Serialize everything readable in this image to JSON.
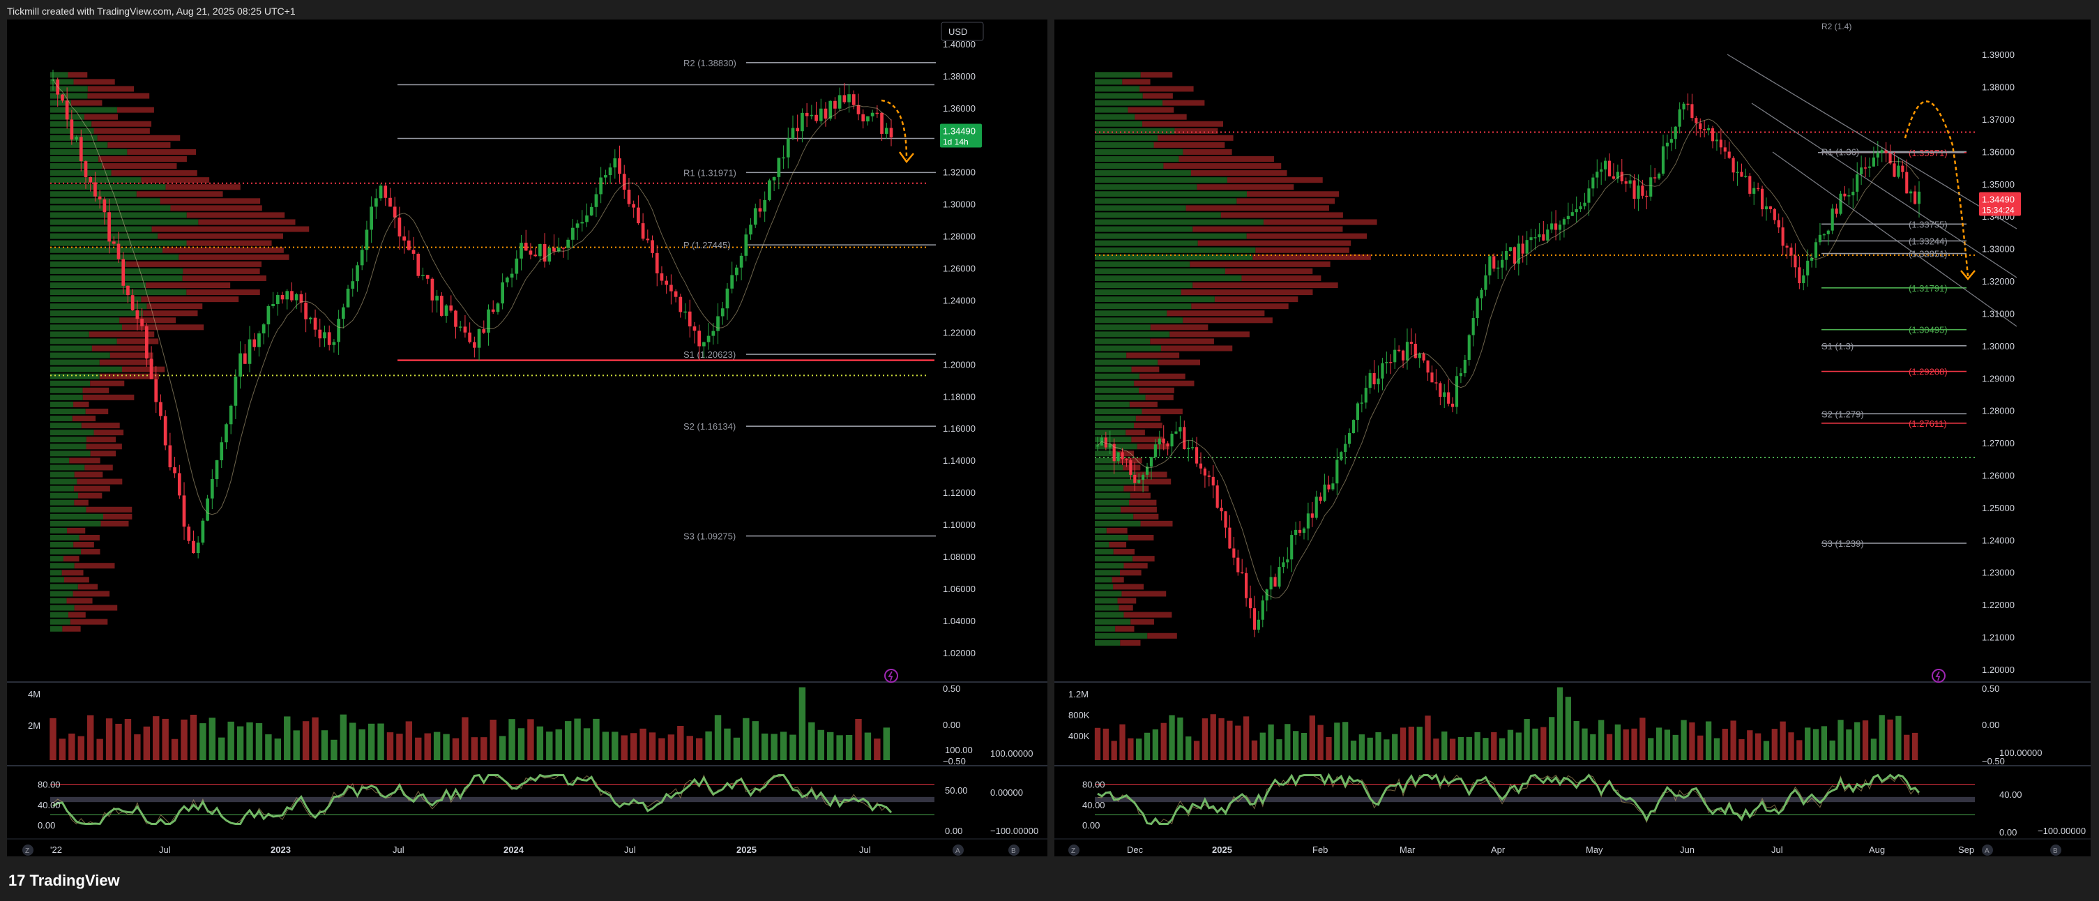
{
  "header": {
    "text": "Tickmill created with TradingView.com, Aug 21, 2025 08:25 UTC+1"
  },
  "brand": {
    "logo": "17",
    "name": "TradingView"
  },
  "left": {
    "currency_button": "USD",
    "price_axis": [
      "1.40000",
      "1.38000",
      "1.36000",
      "1.34000",
      "1.32000",
      "1.30000",
      "1.28000",
      "1.26000",
      "1.24000",
      "1.22000",
      "1.20000",
      "1.18000",
      "1.16000",
      "1.14000",
      "1.12000",
      "1.10000",
      "1.08000",
      "1.06000",
      "1.04000",
      "1.02000"
    ],
    "pivots": [
      {
        "label": "R2 (1.38830)",
        "price": 1.3883,
        "color": "#9598a1"
      },
      {
        "label": "R1 (1.31971)",
        "price": 1.3197,
        "color": "#9598a1"
      },
      {
        "label": "P (1.27445)",
        "price": 1.2745,
        "color": "#9598a1"
      },
      {
        "label": "S1 (1.20623)",
        "price": 1.2062,
        "color": "#9598a1"
      },
      {
        "label": "S2 (1.16134)",
        "price": 1.1613,
        "color": "#9598a1"
      },
      {
        "label": "S3 (1.09275)",
        "price": 1.0928,
        "color": "#9598a1"
      }
    ],
    "last_price": "1.34490",
    "countdown": "1d 14h",
    "volume_axis": [
      "4M",
      "2M"
    ],
    "osc_right_axis": [
      "0.50",
      "0.00",
      "−0.50"
    ],
    "stoch_axis_left": [
      "80.00",
      "40.00",
      "0.00"
    ],
    "stoch_axis_right": [
      "100.00",
      "50.00",
      "0.00"
    ],
    "stoch_axis_right2": [
      "100.00000",
      "0.00000",
      "−100.00000"
    ],
    "time_axis": [
      "'22",
      "Jul",
      "2023",
      "Jul",
      "2024",
      "Jul",
      "2025",
      "Jul"
    ],
    "time_labels_bold": [
      false,
      false,
      true,
      false,
      true,
      false,
      true,
      false
    ],
    "bottom_buttons": [
      "Z",
      "A",
      "B"
    ]
  },
  "right": {
    "price_axis": [
      "1.39000",
      "1.38000",
      "1.37000",
      "1.36000",
      "1.35000",
      "1.34000",
      "1.33000",
      "1.32000",
      "1.31000",
      "1.30000",
      "1.29000",
      "1.28000",
      "1.27000",
      "1.26000",
      "1.25000",
      "1.24000",
      "1.23000",
      "1.22000",
      "1.21000",
      "1.20000"
    ],
    "top_cut_label": "R2 (1.4)",
    "pivots": [
      {
        "label": "R1 (1.36)",
        "price": 1.36,
        "color": "#9598a1"
      },
      {
        "label": "(1.35971)",
        "price": 1.3597,
        "color": "#f23645"
      },
      {
        "label": "(1.33755)",
        "price": 1.3376,
        "color": "#9598a1"
      },
      {
        "label": "(1.33244)",
        "price": 1.3324,
        "color": "#9598a1"
      },
      {
        "label": "(1.32851)",
        "price": 1.3285,
        "color": "#9598a1"
      },
      {
        "label": "(1.31791)",
        "price": 1.3179,
        "color": "#4caf50"
      },
      {
        "label": "(1.30495)",
        "price": 1.305,
        "color": "#4caf50"
      },
      {
        "label": "S1 (1.3)",
        "price": 1.3,
        "color": "#9598a1"
      },
      {
        "label": "(1.29208)",
        "price": 1.2921,
        "color": "#f23645"
      },
      {
        "label": "S2 (1.279)",
        "price": 1.279,
        "color": "#9598a1"
      },
      {
        "label": "(1.27611)",
        "price": 1.2761,
        "color": "#f23645"
      },
      {
        "label": "S3 (1.239)",
        "price": 1.239,
        "color": "#9598a1"
      }
    ],
    "last_price": "1.34490",
    "countdown": "15:34:24",
    "volume_axis": [
      "1.2M",
      "800K",
      "400K"
    ],
    "osc_right_axis": [
      "0.50",
      "0.00",
      "−0.50"
    ],
    "stoch_axis_left": [
      "80.00",
      "40.00",
      "0.00"
    ],
    "stoch_axis_right": [
      "100.00000",
      "40.00",
      "0.00",
      "−100.00000"
    ],
    "time_axis": [
      "Dec",
      "2025",
      "Feb",
      "Mar",
      "Apr",
      "May",
      "Jun",
      "Jul",
      "Aug",
      "Sep"
    ],
    "time_labels_bold": [
      false,
      true,
      false,
      false,
      false,
      false,
      false,
      false,
      false,
      false
    ],
    "bottom_buttons": [
      "Z",
      "A",
      "B"
    ]
  },
  "colors": {
    "up": "#26a641",
    "down": "#f23645",
    "bg": "#000000",
    "grid": "#2a2e39",
    "accent_green_label": "#16a34a",
    "accent_red_label": "#f23645",
    "forecast": "#ff9800"
  },
  "icons": {
    "lightning": "lightning-icon"
  }
}
